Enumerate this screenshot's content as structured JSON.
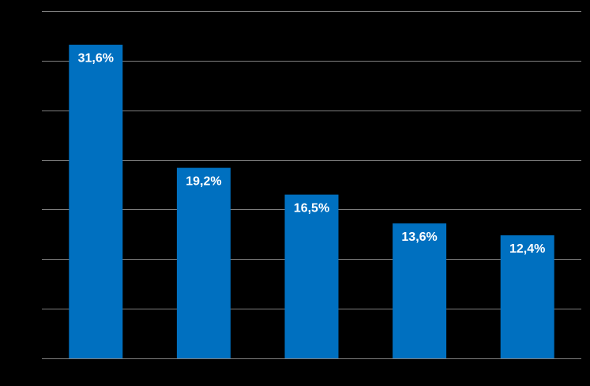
{
  "colors": {
    "background": "#000000",
    "bar": "#0070C0",
    "grid": "#7F7F7F",
    "label": "#FFFFFF"
  },
  "chart_data": {
    "type": "bar",
    "categories": [
      "",
      "",
      "",
      "",
      ""
    ],
    "values": [
      31.6,
      19.2,
      16.5,
      13.6,
      12.4
    ],
    "data_labels": [
      "31,6%",
      "19,2%",
      "16,5%",
      "13,6%",
      "12,4%"
    ],
    "title": "",
    "xlabel": "",
    "ylabel": "",
    "ylim": [
      0,
      35
    ],
    "grid": true,
    "legend": "none"
  }
}
